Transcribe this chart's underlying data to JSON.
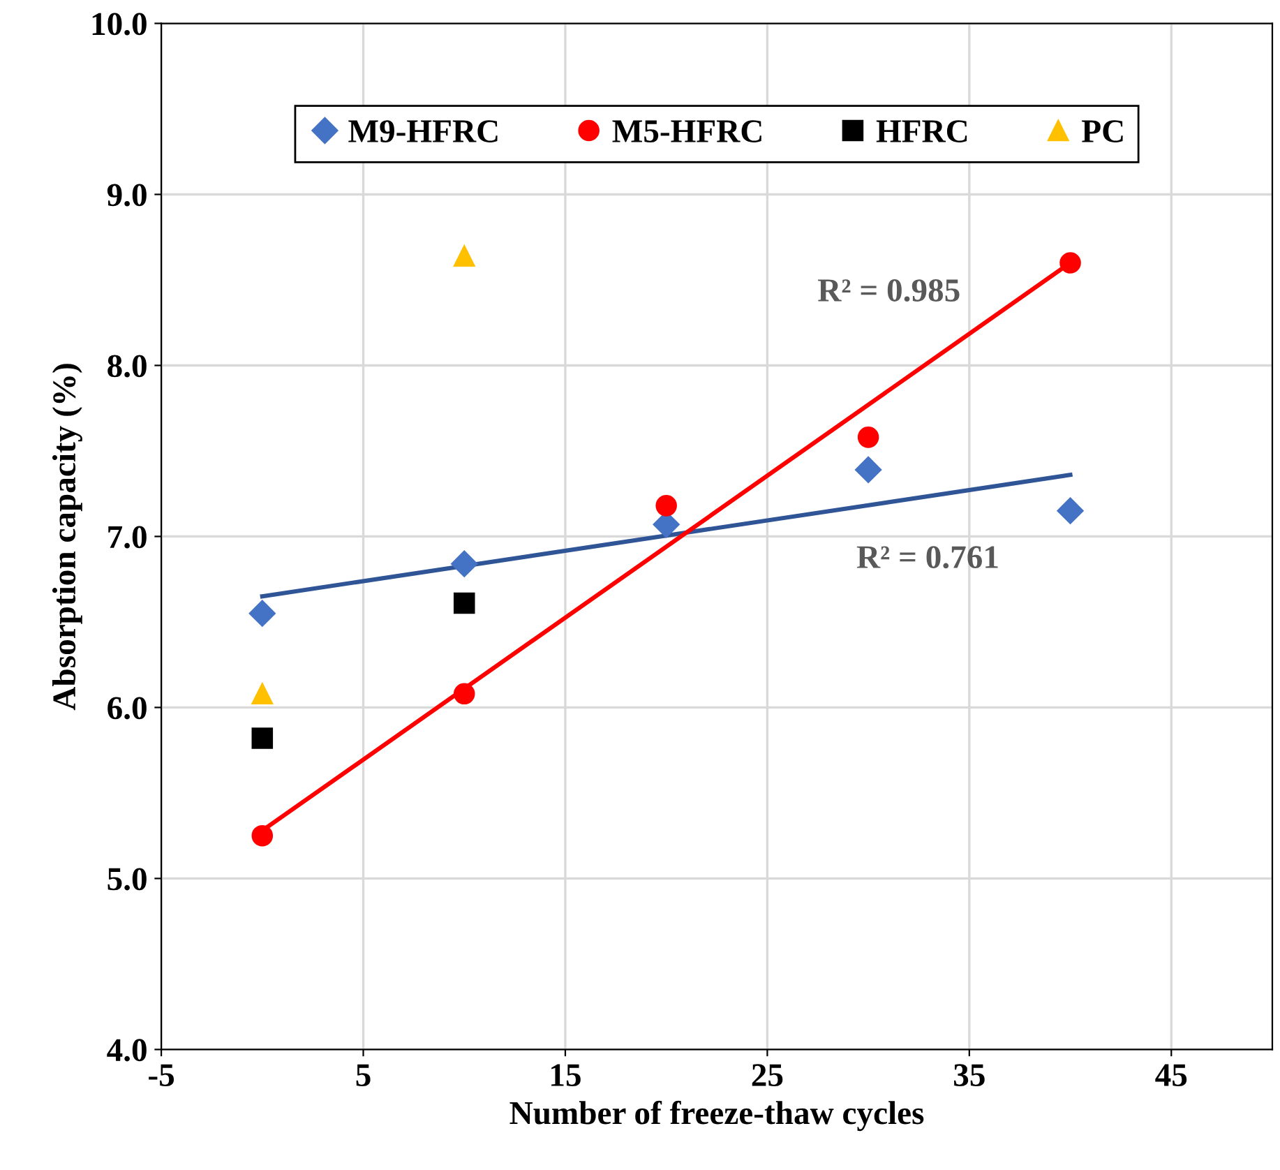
{
  "chart_data": {
    "type": "scatter",
    "xlabel": "Number of freeze-thaw cycles",
    "ylabel": "Absorption capacity (%)",
    "xlim": [
      -5,
      50
    ],
    "xticks": [
      -5,
      5,
      15,
      25,
      35,
      45
    ],
    "ylim": [
      4.0,
      10.0
    ],
    "yticks": [
      {
        "value": 4,
        "label": "4.0"
      },
      {
        "value": 5,
        "label": "5.0"
      },
      {
        "value": 6,
        "label": "6.0"
      },
      {
        "value": 7,
        "label": "7.0"
      },
      {
        "value": 8,
        "label": "8.0"
      },
      {
        "value": 9,
        "label": "9.0"
      },
      {
        "value": 10,
        "label": "10.0"
      }
    ],
    "grid": true,
    "legend": "top",
    "series": [
      {
        "name": "M9-HFRC",
        "color": "#4472c4",
        "marker": "diamond",
        "x": [
          0,
          10,
          20,
          30,
          40
        ],
        "values": [
          6.55,
          6.84,
          7.07,
          7.39,
          7.15
        ]
      },
      {
        "name": "M5-HFRC",
        "color": "#ff0000",
        "marker": "circle",
        "x": [
          0,
          10,
          20,
          30,
          40
        ],
        "values": [
          5.25,
          6.08,
          7.18,
          7.58,
          8.6
        ]
      },
      {
        "name": "HFRC",
        "color": "#000000",
        "marker": "square",
        "x": [
          0,
          10
        ],
        "values": [
          5.82,
          6.61
        ]
      },
      {
        "name": "PC",
        "color": "#ffc000",
        "marker": "triangle",
        "x": [
          0,
          10
        ],
        "values": [
          6.08,
          8.64
        ]
      },
      {
        "type": "line",
        "color": "#2f5597",
        "x": [
          0,
          40
        ],
        "values": [
          6.65,
          7.36
        ]
      },
      {
        "type": "line",
        "color": "#ff0000",
        "x": [
          0,
          40
        ],
        "values": [
          5.28,
          8.6
        ]
      }
    ],
    "annotations": [
      "R² = 0.985",
      "R² = 0.761"
    ]
  }
}
